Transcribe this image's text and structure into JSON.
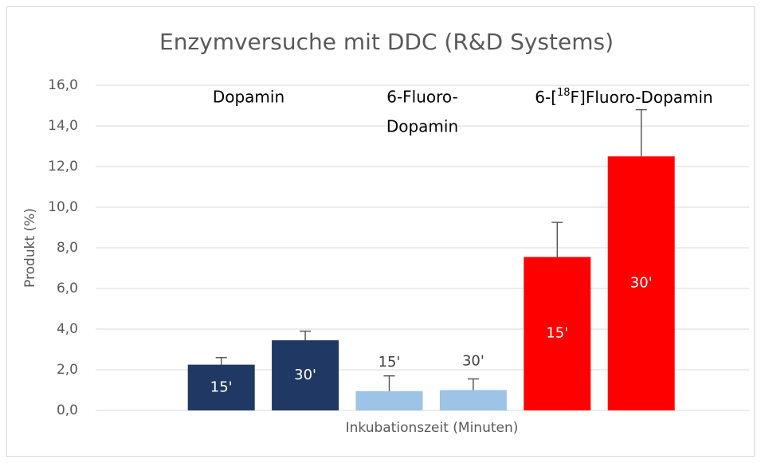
{
  "chart_data": {
    "type": "bar",
    "title": "Enzymversuche mit DDC (R&D Systems)",
    "x_label": "Inkubationszeit (Minuten)",
    "y_label": "Produkt (%)",
    "categories": [
      "15'",
      "30'",
      "15'",
      "30'",
      "15'",
      "30'"
    ],
    "values": [
      2.25,
      3.45,
      0.95,
      1.0,
      7.55,
      12.5
    ],
    "errors": [
      0.35,
      0.45,
      0.75,
      0.55,
      1.7,
      2.3
    ],
    "colors": [
      "#203864",
      "#203864",
      "#9dc3e6",
      "#9dc3e6",
      "#ff0000",
      "#ff0000"
    ],
    "error_color": "#595959",
    "groups": [
      {
        "lines": [
          "Dopamin"
        ]
      },
      {
        "lines": [
          "6-Fluoro-",
          "Dopamin"
        ]
      },
      {
        "before": "6-[",
        "sup": "18",
        "after": "F]Fluoro-Dopamin"
      }
    ],
    "ylim": [
      0,
      16
    ],
    "yticks": [
      {
        "value": 0,
        "label": "0,0"
      },
      {
        "value": 2,
        "label": "2,0"
      },
      {
        "value": 4,
        "label": "4,0"
      },
      {
        "value": 6,
        "label": "6,0"
      },
      {
        "value": 8,
        "label": "8,0"
      },
      {
        "value": 10,
        "label": "10,0"
      },
      {
        "value": 12,
        "label": "12,0"
      },
      {
        "value": 14,
        "label": "14,0"
      },
      {
        "value": 16,
        "label": "16,0"
      }
    ],
    "grid": true
  }
}
